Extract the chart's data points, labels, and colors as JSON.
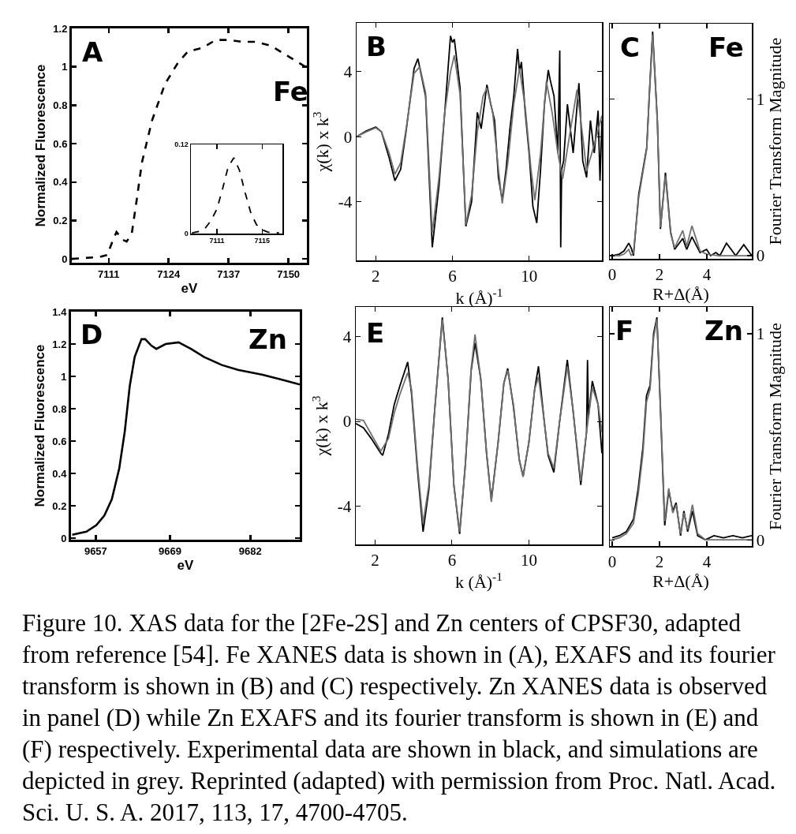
{
  "chart_data": [
    {
      "type": "line",
      "xlabel": "eV",
      "ylabel": "Normalized Fluorescence",
      "xlim": [
        7103,
        7154
      ],
      "ylim": [
        -0.02,
        1.2
      ],
      "xticks": [
        7111,
        7124,
        7137,
        7150
      ],
      "yticks": [
        0,
        0.2,
        0.4,
        0.6,
        0.8,
        1,
        1.2
      ],
      "line_style": "dashed",
      "annotations": [
        "A",
        "Fe"
      ],
      "series": [
        {
          "color": "#000000",
          "x": [
            7103,
            7106,
            7109,
            7110.7,
            7111.8,
            7112.7,
            7114,
            7114.9,
            7116,
            7117.1,
            7118.2,
            7120.4,
            7123.2,
            7126,
            7128.2,
            7131.5,
            7134.2,
            7137,
            7140,
            7142.8,
            7146.2,
            7150.3,
            7153.7
          ],
          "values": [
            0,
            0.005,
            0.01,
            0.02,
            0.09,
            0.14,
            0.1,
            0.09,
            0.13,
            0.31,
            0.5,
            0.72,
            0.91,
            1.02,
            1.08,
            1.1,
            1.14,
            1.14,
            1.13,
            1.13,
            1.11,
            1.05,
            1.0
          ]
        }
      ]
    },
    {
      "type": "line",
      "xlim": [
        7108.7,
        7116.8
      ],
      "ylim": [
        0,
        0.12
      ],
      "xticks": [
        7111,
        7115
      ],
      "yticks": [
        0,
        0.12
      ],
      "line_style": "dashed",
      "series": [
        {
          "color": "#000000",
          "x": [
            7108.8,
            7109.5,
            7110,
            7110.5,
            7111,
            7111.5,
            7112,
            7112.5,
            7113,
            7113.5,
            7114,
            7114.5,
            7115,
            7115.5,
            7116.5
          ],
          "values": [
            0.001,
            0.003,
            0.008,
            0.018,
            0.033,
            0.06,
            0.09,
            0.102,
            0.085,
            0.055,
            0.028,
            0.012,
            0.005,
            0.002,
            0.001
          ]
        }
      ]
    },
    {
      "type": "line",
      "xlabel": "k (Å)$^{-1}$",
      "ylabel": "χ(k) x k$^{3}$",
      "xlim": [
        1,
        13.8
      ],
      "ylim": [
        -7.6,
        7
      ],
      "xticks": [
        2,
        6,
        10
      ],
      "yticks": [
        -4,
        0,
        4
      ],
      "annotations": [
        "B"
      ],
      "series": [
        {
          "color": "#000000",
          "x": [
            1,
            1.5,
            2,
            2.3,
            2.7,
            3,
            3.3,
            3.6,
            4,
            4.2,
            4.6,
            4.95,
            5.3,
            5.6,
            5.9,
            6,
            6.1,
            6.4,
            6.7,
            7,
            7.3,
            7.5,
            7.8,
            8,
            8.2,
            8.4,
            8.6,
            8.8,
            9,
            9.2,
            9.4,
            9.5,
            9.6,
            9.8,
            10,
            10.2,
            10.4,
            10.6,
            10.8,
            11,
            11.1,
            11.3,
            11.5,
            11.6,
            11.65,
            11.7,
            11.8,
            12,
            12.3,
            12.6,
            12.8,
            13,
            13.2,
            13.4,
            13.6,
            13.7,
            13.8
          ],
          "values": [
            0,
            0.35,
            0.6,
            0.3,
            -1.3,
            -2.7,
            -2,
            0.5,
            4.2,
            4.8,
            2.5,
            -6.8,
            -3,
            1.5,
            6.2,
            5.8,
            6,
            3,
            -5.5,
            -4,
            1.5,
            0.5,
            3.2,
            2,
            1,
            -2.5,
            -3.9,
            -2,
            0.5,
            2.5,
            5.4,
            4,
            4.6,
            1.5,
            -1,
            -4.3,
            -5.3,
            -2,
            2,
            4.1,
            3.5,
            2.5,
            -1,
            5.3,
            -6.8,
            -2,
            -1.5,
            2,
            -1,
            3.3,
            -1.5,
            -2.5,
            1,
            -1,
            1.6,
            -2.7,
            1
          ]
        },
        {
          "color": "#707070",
          "x": [
            1,
            1.5,
            2,
            2.3,
            2.7,
            3,
            3.3,
            3.6,
            4,
            4.3,
            4.6,
            4.95,
            5.3,
            5.6,
            5.9,
            6.1,
            6.4,
            6.7,
            7,
            7.3,
            7.6,
            7.8,
            8.1,
            8.4,
            8.6,
            8.9,
            9.2,
            9.5,
            9.8,
            10.1,
            10.3,
            10.6,
            10.9,
            11.2,
            11.5,
            11.75,
            12.1,
            12.5,
            12.8,
            13,
            13.4,
            13.8
          ],
          "values": [
            0,
            0.3,
            0.55,
            0.3,
            -1,
            -2.3,
            -1.6,
            0.6,
            3.9,
            4.3,
            2.7,
            -5.9,
            -2.5,
            1.5,
            4,
            5,
            2.6,
            -5.4,
            -3.6,
            0.3,
            2.5,
            3,
            1.5,
            -2,
            -4.1,
            -1.5,
            2,
            4.2,
            1.8,
            -2,
            -3.9,
            -1,
            3.4,
            1.5,
            -1,
            -2.6,
            0,
            2.9,
            0,
            -2.1,
            -0.5,
            1.3
          ]
        }
      ]
    },
    {
      "type": "line",
      "xlabel": "R+Δ(Å)",
      "ylabel": "Fourier Transform Magnitude",
      "xlim": [
        -0.1,
        5.9
      ],
      "ylim": [
        -0.02,
        1.48
      ],
      "xticks": [
        0,
        2,
        4
      ],
      "yticks": [
        0,
        1
      ],
      "annotations": [
        "C",
        "Fe"
      ],
      "series": [
        {
          "color": "#000000",
          "x": [
            0,
            0.3,
            0.5,
            0.7,
            0.8,
            0.9,
            1.12,
            1.46,
            1.57,
            1.71,
            1.91,
            2.04,
            2.25,
            2.47,
            2.64,
            2.98,
            3.15,
            3.37,
            3.71,
            3.99,
            4.16,
            4.38,
            4.55,
            4.83,
            5.22,
            5.56,
            5.9
          ],
          "values": [
            0,
            0.01,
            0.03,
            0.08,
            0.05,
            0,
            0.39,
            0.69,
            1.03,
            1.43,
            0.86,
            0.17,
            0.53,
            0.15,
            0.04,
            0.11,
            0.04,
            0.12,
            0.02,
            0.04,
            0,
            0.02,
            0,
            0.08,
            0,
            0.07,
            0
          ]
        },
        {
          "color": "#707070",
          "x": [
            0,
            0.3,
            0.5,
            0.7,
            0.8,
            0.9,
            1.12,
            1.46,
            1.57,
            1.71,
            1.91,
            2.04,
            2.25,
            2.47,
            2.64,
            2.98,
            3.15,
            3.37,
            3.71,
            3.99,
            4.5,
            5.9
          ],
          "values": [
            0,
            0,
            0.01,
            0.04,
            0,
            0.02,
            0.37,
            0.68,
            1.02,
            1.41,
            0.85,
            0.18,
            0.51,
            0.14,
            0.05,
            0.16,
            0.06,
            0.19,
            0.03,
            0.01,
            0,
            0
          ]
        }
      ]
    },
    {
      "type": "line",
      "xlabel": "eV",
      "ylabel": "Normalized Fluorescence",
      "xlim": [
        9653,
        9690
      ],
      "ylim": [
        -0.01,
        1.4
      ],
      "xticks": [
        9657,
        9669,
        9682
      ],
      "yticks": [
        0,
        0.2,
        0.4,
        0.6,
        0.8,
        1,
        1.2,
        1.4
      ],
      "annotations": [
        "D",
        "Zn"
      ],
      "series": [
        {
          "color": "#000000",
          "x": [
            9653.2,
            9655.5,
            9657.1,
            9658.4,
            9659.6,
            9660.8,
            9661.7,
            9662.5,
            9663.3,
            9664.4,
            9665,
            9666,
            9666.8,
            9668.3,
            9670.4,
            9672.4,
            9674.5,
            9677.4,
            9680,
            9684,
            9687,
            9690
          ],
          "values": [
            0.02,
            0.04,
            0.08,
            0.14,
            0.24,
            0.43,
            0.66,
            0.94,
            1.12,
            1.23,
            1.23,
            1.19,
            1.17,
            1.2,
            1.21,
            1.17,
            1.12,
            1.07,
            1.04,
            1.01,
            0.98,
            0.95
          ]
        }
      ]
    },
    {
      "type": "line",
      "xlabel": "k (Å)$^{-1}$",
      "ylabel": "χ(k) x k$^{3}$",
      "xlim": [
        1,
        13.8
      ],
      "ylim": [
        -5.8,
        5.4
      ],
      "xticks": [
        2,
        6,
        10
      ],
      "yticks": [
        -4,
        0,
        4
      ],
      "annotations": [
        "E"
      ],
      "series": [
        {
          "color": "#000000",
          "x": [
            1,
            1.4,
            1.8,
            2.3,
            2.4,
            2.7,
            3,
            3.3,
            3.7,
            3.9,
            4.2,
            4.5,
            4.8,
            5.1,
            5.5,
            5.8,
            6.1,
            6.4,
            6.7,
            7,
            7.2,
            7.5,
            7.8,
            8.05,
            8.4,
            8.7,
            8.9,
            9.2,
            9.5,
            9.7,
            10,
            10.3,
            10.5,
            10.8,
            11,
            11.3,
            11.6,
            12,
            12.3,
            12.7,
            13,
            13.05,
            13.1,
            13.3,
            13.6,
            13.8
          ],
          "values": [
            -0.1,
            -0.3,
            -0.8,
            -1.5,
            -1.6,
            -0.6,
            0.8,
            1.7,
            2.8,
            1.3,
            -2.2,
            -5.2,
            -3.2,
            0.5,
            4.9,
            2,
            -3,
            -5.3,
            -2,
            2.4,
            3.7,
            2,
            -1.5,
            -3.7,
            -1,
            1.8,
            2.5,
            0.7,
            -1.8,
            -2.6,
            -1,
            1.5,
            2.6,
            0,
            -1.6,
            -2.4,
            0,
            2.9,
            0.5,
            -3,
            -0.5,
            2.9,
            0.2,
            1.9,
            0.8,
            -1.5
          ]
        },
        {
          "color": "#707070",
          "x": [
            1,
            1.4,
            1.8,
            2.3,
            2.7,
            3,
            3.3,
            3.7,
            3.9,
            4.2,
            4.5,
            4.8,
            5.1,
            5.5,
            5.8,
            6.1,
            6.4,
            6.7,
            7,
            7.2,
            7.5,
            7.8,
            8.05,
            8.4,
            8.7,
            8.9,
            9.2,
            9.5,
            9.7,
            10,
            10.3,
            10.5,
            10.8,
            11,
            11.3,
            11.6,
            12,
            12.3,
            12.7,
            13,
            13.3,
            13.6,
            13.8
          ],
          "values": [
            0.1,
            0.05,
            -0.6,
            -1.4,
            -0.8,
            0.4,
            1.3,
            2.3,
            1.5,
            -2,
            -4.8,
            -3,
            0.5,
            4.8,
            2,
            -3,
            -5.2,
            -2,
            2.5,
            4.1,
            2,
            -1.5,
            -3.8,
            -1,
            1.8,
            2.4,
            0.8,
            -1.8,
            -2.6,
            -1,
            1.5,
            2.1,
            0,
            -1.5,
            -2.2,
            0,
            2.6,
            0.5,
            -2.8,
            -0.5,
            1.6,
            0.8,
            -0.5
          ]
        }
      ]
    },
    {
      "type": "line",
      "xlabel": "R+Δ(Å)",
      "ylabel": "Fourier Transform Magnitude",
      "xlim": [
        -0.1,
        5.9
      ],
      "ylim": [
        -0.03,
        1.13
      ],
      "xticks": [
        0,
        2,
        4
      ],
      "yticks": [
        0,
        1
      ],
      "annotations": [
        "F",
        "Zn"
      ],
      "series": [
        {
          "color": "#000000",
          "x": [
            0,
            0.3,
            0.6,
            0.9,
            1.1,
            1.3,
            1.45,
            1.6,
            1.75,
            1.89,
            2.05,
            2.22,
            2.39,
            2.56,
            2.7,
            2.89,
            3.03,
            3.19,
            3.39,
            3.61,
            3.94,
            4.3,
            4.7,
            5.1,
            5.5,
            5.9
          ],
          "values": [
            0.01,
            0.02,
            0.04,
            0.1,
            0.25,
            0.45,
            0.7,
            0.75,
            1,
            1.08,
            0.6,
            0.07,
            0.24,
            0.14,
            0.18,
            0.02,
            0.14,
            0.04,
            0.14,
            0.02,
            0,
            0.02,
            0.01,
            0.02,
            0.01,
            0.02
          ]
        },
        {
          "color": "#707070",
          "x": [
            0,
            0.3,
            0.6,
            0.9,
            1.1,
            1.3,
            1.45,
            1.6,
            1.75,
            1.89,
            2.05,
            2.22,
            2.39,
            2.56,
            2.7,
            2.89,
            3.03,
            3.19,
            3.39,
            3.61,
            3.94,
            4.5,
            5.9
          ],
          "values": [
            0,
            0.01,
            0.03,
            0.08,
            0.22,
            0.42,
            0.67,
            0.73,
            0.98,
            1.07,
            0.62,
            0.09,
            0.25,
            0.13,
            0.17,
            0.03,
            0.13,
            0.05,
            0.17,
            0.03,
            0,
            0,
            0
          ]
        }
      ]
    },
    {
      "type": "other",
      "annotations": [
        "Figure 10. XAS data for the [2Fe-2S] and Zn centers of CPSF30, adapted from reference [54]. Fe XANES data is shown in (A), EXAFS and its fourier transform is shown in (B) and (C) respectively. Zn XANES data is observed in panel (D) while Zn EXAFS and its fourier transform is shown in (E) and (F) respectively. Experimental data are shown in black, and simulations are depicted in grey. Reprinted (adapted) with permission from Proc. Natl. Acad. Sci. U. S. A. 2017, 113, 17, 4700-4705."
      ]
    }
  ]
}
